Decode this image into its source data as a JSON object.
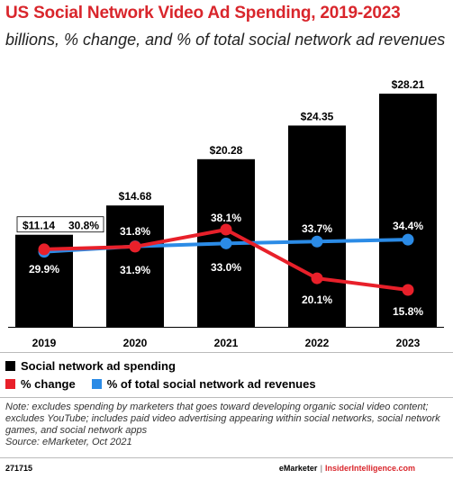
{
  "header": {
    "title": "US Social Network Video Ad Spending, 2019-2023",
    "subtitle": "billions, % change, and % of total social network ad revenues"
  },
  "legend": {
    "spending": "Social network ad spending",
    "change": "% change",
    "share": "% of total social network ad revenues"
  },
  "note": "Note: excludes spending by marketers that goes toward developing organic social video content; excludes YouTube; includes paid video advertising appearing within social networks, social network games, and social network apps",
  "source": "Source: eMarketer, Oct 2021",
  "footer": {
    "id": "271715",
    "brand_em": "eMarketer",
    "brand_sep": "|",
    "brand_ins": "InsiderIntelligence.com"
  },
  "colors": {
    "bar": "#000000",
    "change": "#e8202a",
    "share": "#2b8be6",
    "title": "#d9262c"
  },
  "chart_data": {
    "type": "bar",
    "title": "US Social Network Video Ad Spending, 2019-2023",
    "subtitle": "billions, % change, and % of total social network ad revenues",
    "categories": [
      "2019",
      "2020",
      "2021",
      "2022",
      "2023"
    ],
    "series": [
      {
        "name": "Social network ad spending",
        "kind": "bar",
        "values": [
          11.14,
          14.68,
          20.28,
          24.35,
          28.21
        ],
        "labels": [
          "$11.14",
          "$14.68",
          "$20.28",
          "$24.35",
          "$28.21"
        ]
      },
      {
        "name": "% change",
        "kind": "line",
        "values": [
          30.8,
          31.8,
          38.1,
          20.1,
          15.8
        ],
        "labels": [
          "30.8%",
          "31.8%",
          "38.1%",
          "20.1%",
          "15.8%"
        ]
      },
      {
        "name": "% of total social network ad revenues",
        "kind": "line",
        "values": [
          29.9,
          31.9,
          33.0,
          33.7,
          34.4
        ],
        "labels": [
          "29.9%",
          "31.9%",
          "33.0%",
          "33.7%",
          "34.4%"
        ]
      }
    ],
    "ylim_spending": [
      0,
      28.21
    ],
    "legend_position": "bottom"
  }
}
